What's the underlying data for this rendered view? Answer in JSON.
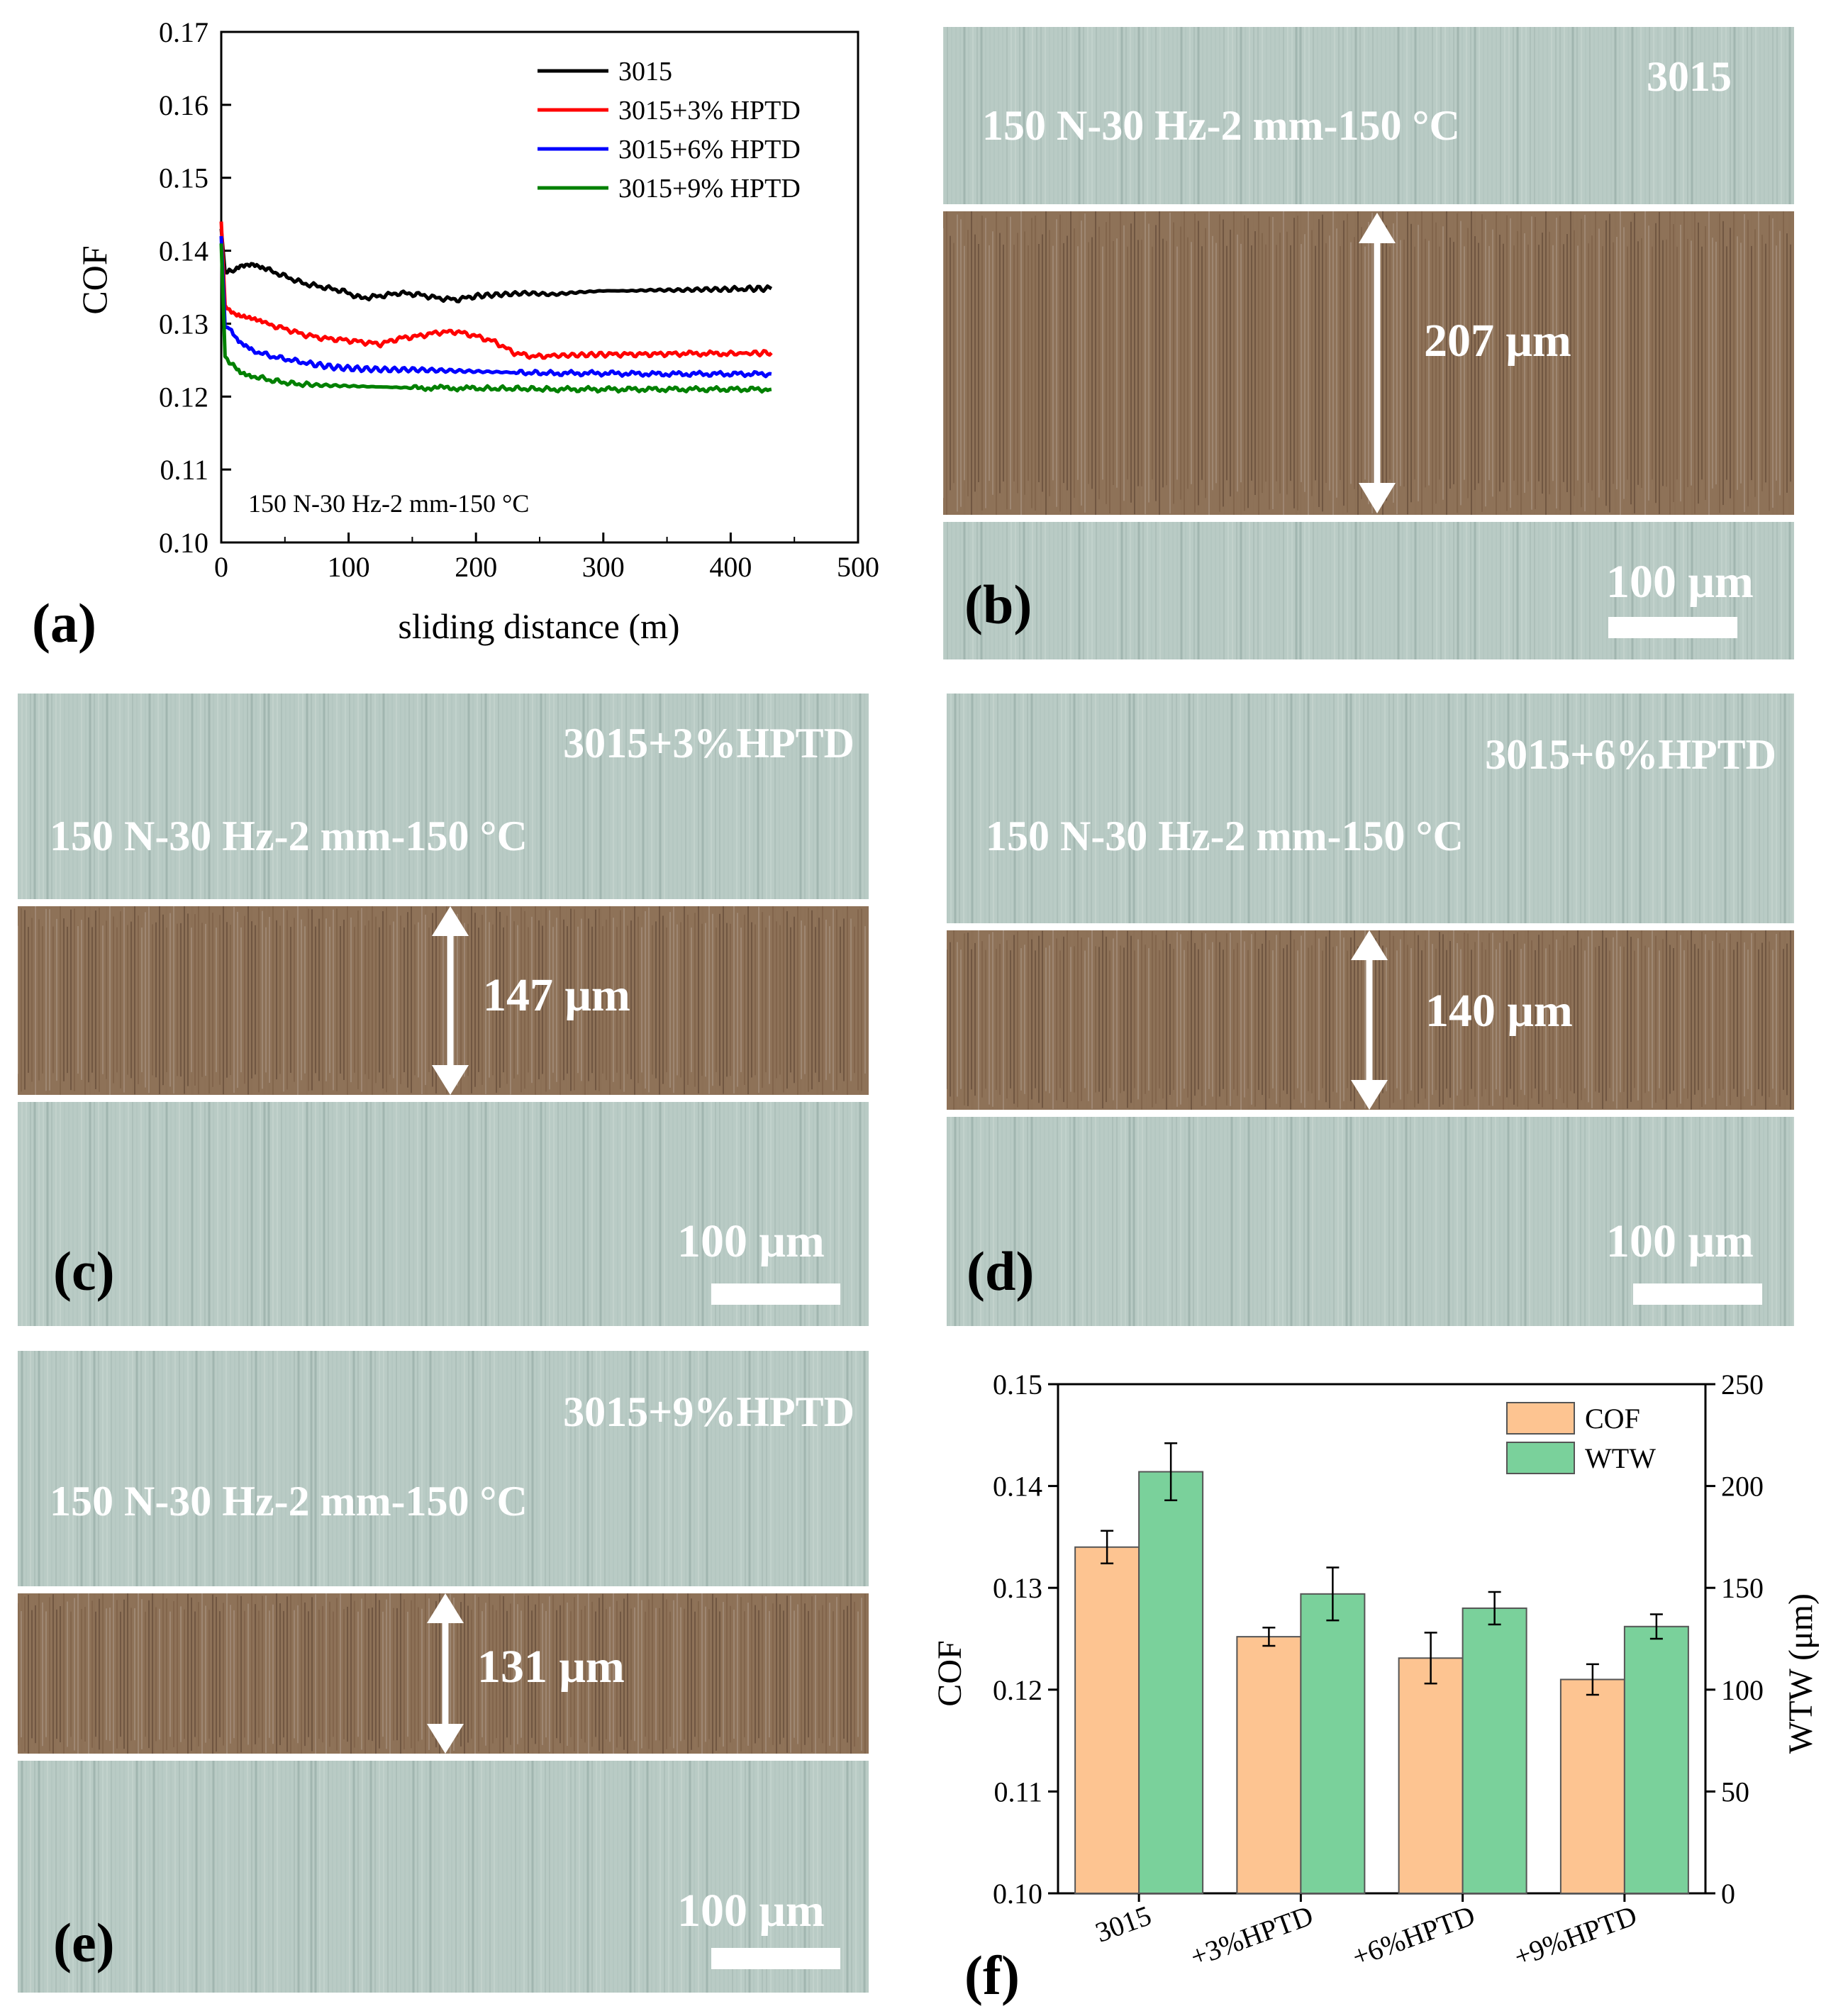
{
  "panel_labels": {
    "a": "(a)",
    "b": "(b)",
    "c": "(c)",
    "d": "(d)",
    "e": "(e)",
    "f": "(f)"
  },
  "chart_data": [
    {
      "type": "line",
      "xlabel": "sliding distance (m)",
      "ylabel": "COF",
      "xlim": [
        0,
        500
      ],
      "ylim": [
        0.1,
        0.17
      ],
      "xticks": [
        "0",
        "100",
        "200",
        "300",
        "400",
        "500"
      ],
      "yticks": [
        "0.10",
        "0.11",
        "0.12",
        "0.13",
        "0.14",
        "0.15",
        "0.16",
        "0.17"
      ],
      "annotation": "150 N-30 Hz-2 mm-150 °C",
      "legend_position": "top-right",
      "grid": false,
      "series": [
        {
          "name": "3015",
          "color": "#000000",
          "x": [
            0,
            3,
            8,
            15,
            25,
            35,
            50,
            65,
            80,
            95,
            110,
            125,
            140,
            155,
            170,
            185,
            200,
            220,
            240,
            260,
            280,
            300,
            320,
            340,
            360,
            380,
            400,
            415,
            432
          ],
          "y": [
            0.143,
            0.137,
            0.1372,
            0.1377,
            0.138,
            0.1375,
            0.1365,
            0.1355,
            0.135,
            0.1345,
            0.1335,
            0.1338,
            0.1342,
            0.134,
            0.1335,
            0.1333,
            0.1338,
            0.134,
            0.1342,
            0.134,
            0.1343,
            0.1345,
            0.1345,
            0.1346,
            0.1346,
            0.1347,
            0.1347,
            0.1348,
            0.1348
          ]
        },
        {
          "name": "3015+3% HPTD",
          "color": "#ff0000",
          "x": [
            0,
            3,
            8,
            15,
            25,
            35,
            50,
            65,
            80,
            95,
            110,
            125,
            140,
            155,
            170,
            185,
            200,
            215,
            230,
            245,
            260,
            280,
            300,
            330,
            360,
            400,
            432
          ],
          "y": [
            0.144,
            0.1325,
            0.1318,
            0.131,
            0.1305,
            0.13,
            0.1293,
            0.1285,
            0.128,
            0.1278,
            0.1275,
            0.1272,
            0.128,
            0.1283,
            0.1288,
            0.1289,
            0.1283,
            0.1275,
            0.126,
            0.1255,
            0.1256,
            0.1257,
            0.1258,
            0.1258,
            0.1259,
            0.1259,
            0.126
          ]
        },
        {
          "name": "3015+6% HPTD",
          "color": "#0000ff",
          "x": [
            0,
            3,
            8,
            15,
            25,
            40,
            55,
            70,
            90,
            110,
            130,
            150,
            170,
            190,
            210,
            230,
            260,
            300,
            340,
            380,
            432
          ],
          "y": [
            0.142,
            0.1295,
            0.129,
            0.1275,
            0.1263,
            0.1255,
            0.125,
            0.1245,
            0.124,
            0.1238,
            0.1237,
            0.1237,
            0.1236,
            0.1235,
            0.1234,
            0.1233,
            0.1232,
            0.1232,
            0.1231,
            0.1231,
            0.1231
          ]
        },
        {
          "name": "3015+9% HPTD",
          "color": "#008000",
          "x": [
            0,
            3,
            8,
            15,
            25,
            40,
            55,
            70,
            90,
            110,
            130,
            150,
            175,
            200,
            230,
            260,
            300,
            340,
            380,
            432
          ],
          "y": [
            0.141,
            0.1255,
            0.1245,
            0.1235,
            0.1228,
            0.1222,
            0.1218,
            0.1216,
            0.1215,
            0.1214,
            0.1213,
            0.1212,
            0.1212,
            0.1211,
            0.1211,
            0.121,
            0.121,
            0.121,
            0.121,
            0.121
          ]
        }
      ]
    },
    {
      "type": "bar",
      "categories": [
        "3015",
        "+3%HPTD",
        "+6%HPTD",
        "+9%HPTD"
      ],
      "ylabel": "COF",
      "y2label": "WTW (μm)",
      "ylim": [
        0.1,
        0.15
      ],
      "y2lim": [
        0,
        250
      ],
      "yticks": [
        "0.10",
        "0.11",
        "0.12",
        "0.13",
        "0.14",
        "0.15"
      ],
      "y2ticks": [
        "0",
        "50",
        "100",
        "150",
        "200",
        "250"
      ],
      "legend_position": "top-right",
      "grid": false,
      "series": [
        {
          "name": "COF",
          "axis": "left",
          "color": "#fdc491",
          "values": [
            0.134,
            0.1252,
            0.1231,
            0.121
          ],
          "errors": [
            0.0016,
            0.0009,
            0.0025,
            0.0015
          ]
        },
        {
          "name": "WTW",
          "axis": "right",
          "color": "#7ad19b",
          "values": [
            207,
            147,
            140,
            131
          ],
          "errors": [
            14,
            13,
            8,
            6
          ]
        }
      ]
    }
  ],
  "micrographs": {
    "b": {
      "sample": "3015",
      "condition": "150 N-30 Hz-2 mm-150 °C",
      "width_label": "207 μm",
      "scale_label": "100 μm"
    },
    "c": {
      "sample": "3015+3%HPTD",
      "condition": "150 N-30 Hz-2 mm-150 °C",
      "width_label": "147 μm",
      "scale_label": "100 μm"
    },
    "d": {
      "sample": "3015+6%HPTD",
      "condition": "150 N-30 Hz-2 mm-150 °C",
      "width_label": "140 μm",
      "scale_label": "100 μm"
    },
    "e": {
      "sample": "3015+9%HPTD",
      "condition": "150 N-30 Hz-2 mm-150 °C",
      "width_label": "131 μm",
      "scale_label": "100 μm"
    }
  },
  "colors": {
    "surface": "#b9cbc5",
    "wear_track": "#8a6a4e",
    "overlay_text": "#ffffff"
  }
}
